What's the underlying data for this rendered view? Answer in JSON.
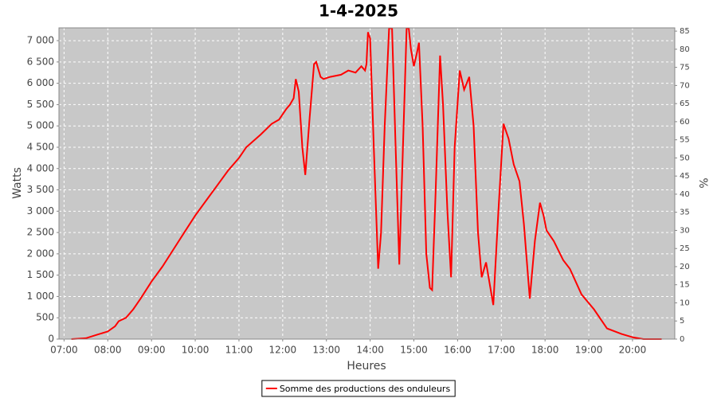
{
  "chart_data": {
    "type": "line",
    "title": "1-4-2025",
    "x_label": "Heures",
    "y_label": "Watts",
    "y2_label": "%",
    "xlim": [
      "06:53",
      "20:58"
    ],
    "xticks": [
      "07:00",
      "08:00",
      "09:00",
      "10:00",
      "11:00",
      "12:00",
      "13:00",
      "14:00",
      "15:00",
      "16:00",
      "17:00",
      "18:00",
      "19:00",
      "20:00"
    ],
    "ylim": [
      0,
      7300
    ],
    "yticks": [
      0,
      500,
      {
        "value": 1000,
        "label": "1 000"
      },
      {
        "value": 1500,
        "label": "1 500"
      },
      {
        "value": 2000,
        "label": "2 000"
      },
      {
        "value": 2500,
        "label": "2 500"
      },
      {
        "value": 3000,
        "label": "3 000"
      },
      {
        "value": 3500,
        "label": "3 500"
      },
      {
        "value": 4000,
        "label": "4 000"
      },
      {
        "value": 4500,
        "label": "4 500"
      },
      {
        "value": 5000,
        "label": "5 000"
      },
      {
        "value": 5500,
        "label": "5 500"
      },
      {
        "value": 6000,
        "label": "6 000"
      },
      {
        "value": 6500,
        "label": "6 500"
      },
      {
        "value": 7000,
        "label": "7 000"
      }
    ],
    "y2lim": [
      0,
      85.9
    ],
    "y2ticks": [
      0,
      5,
      10,
      15,
      20,
      25,
      30,
      35,
      40,
      45,
      50,
      55,
      60,
      65,
      70,
      75,
      80,
      85
    ],
    "grid": true,
    "legend": "bottom",
    "x": [
      "07:10",
      "07:30",
      "07:45",
      "08:00",
      "08:10",
      "08:15",
      "08:25",
      "08:35",
      "08:45",
      "09:00",
      "09:15",
      "09:30",
      "09:45",
      "10:00",
      "10:15",
      "10:30",
      "10:45",
      "11:00",
      "11:10",
      "11:30",
      "11:45",
      "11:55",
      "12:05",
      "12:10",
      "12:15",
      "12:18",
      "12:22",
      "12:27",
      "12:31",
      "12:37",
      "12:43",
      "12:46",
      "12:52",
      "12:56",
      "13:05",
      "13:20",
      "13:30",
      "13:40",
      "13:48",
      "13:53",
      "13:55",
      "13:57",
      "14:00",
      "14:05",
      "14:11",
      "14:15",
      "14:20",
      "14:26",
      "14:30",
      "14:35",
      "14:40",
      "14:45",
      "14:50",
      "14:53",
      "14:56",
      "15:00",
      "15:04",
      "15:07",
      "15:12",
      "15:17",
      "15:22",
      "15:25",
      "15:30",
      "15:36",
      "15:40",
      "15:46",
      "15:51",
      "15:56",
      "16:03",
      "16:09",
      "16:16",
      "16:22",
      "16:28",
      "16:33",
      "16:39",
      "16:49",
      "16:56",
      "17:03",
      "17:10",
      "17:17",
      "17:25",
      "17:31",
      "17:39",
      "17:46",
      "17:53",
      "17:58",
      "18:02",
      "18:12",
      "18:25",
      "18:34",
      "18:50",
      "19:07",
      "19:25",
      "19:45",
      "20:01",
      "20:15",
      "20:40"
    ],
    "series": [
      {
        "name": "Somme des productions des onduleurs",
        "color": "#ff0000",
        "values": [
          0,
          20,
          100,
          180,
          300,
          420,
          500,
          700,
          950,
          1350,
          1700,
          2100,
          2500,
          2900,
          3250,
          3600,
          3950,
          4250,
          4500,
          4800,
          5050,
          5150,
          5400,
          5500,
          5650,
          6100,
          5800,
          4500,
          3850,
          5200,
          6450,
          6500,
          6150,
          6100,
          6150,
          6200,
          6300,
          6250,
          6400,
          6300,
          6450,
          7200,
          7050,
          4500,
          1650,
          2500,
          5000,
          7290,
          7290,
          4500,
          1750,
          4500,
          7290,
          7290,
          6800,
          6400,
          6700,
          6950,
          5000,
          2000,
          1200,
          1150,
          3500,
          6650,
          5500,
          3000,
          1450,
          4500,
          6300,
          5850,
          6150,
          5000,
          2500,
          1450,
          1800,
          800,
          3000,
          5050,
          4700,
          4100,
          3700,
          2700,
          950,
          2300,
          3200,
          2900,
          2550,
          2300,
          1850,
          1650,
          1050,
          700,
          250,
          120,
          40,
          0,
          0
        ]
      }
    ]
  }
}
